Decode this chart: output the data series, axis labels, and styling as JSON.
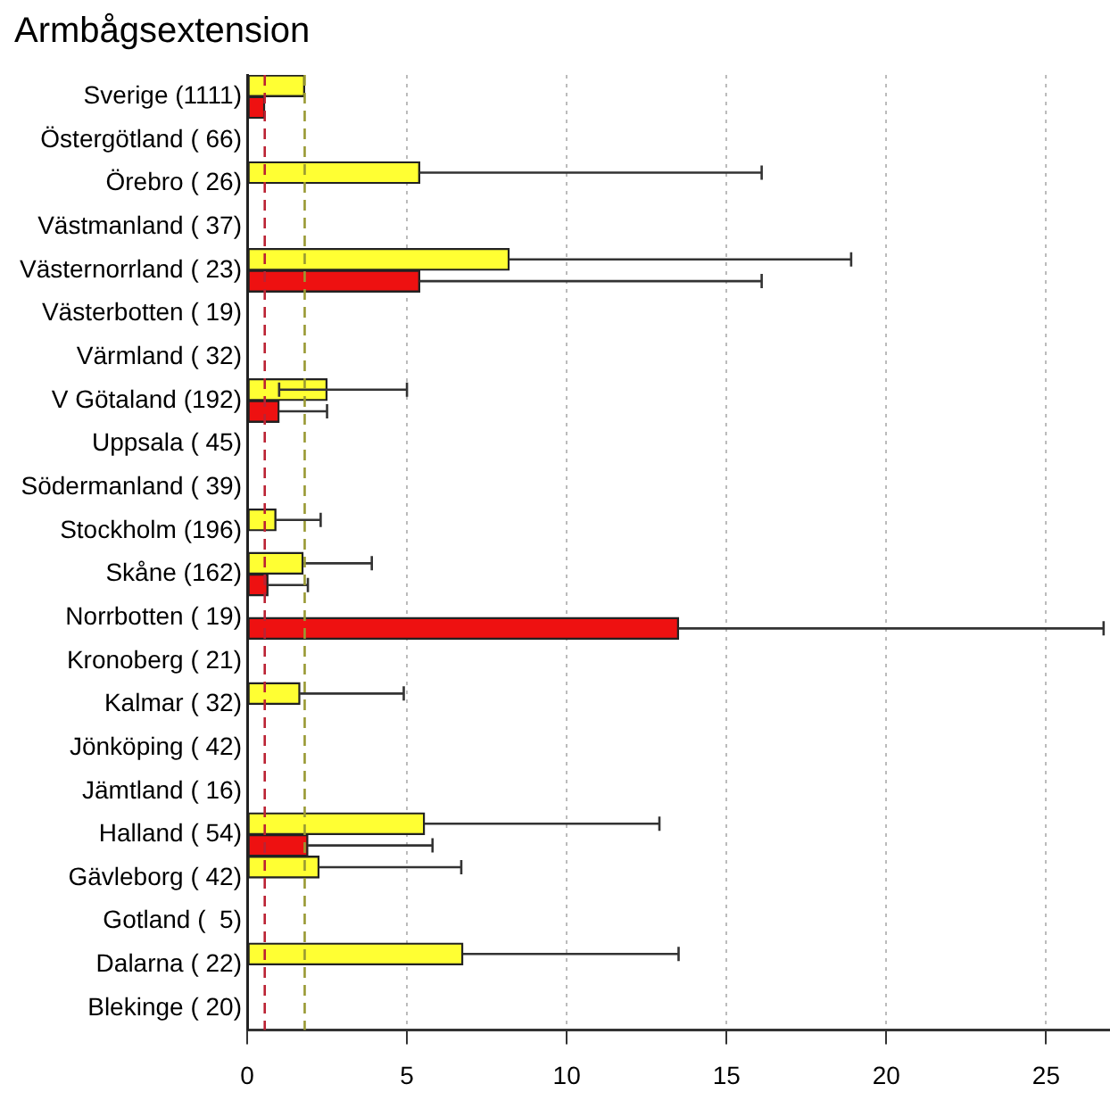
{
  "chart_data": {
    "type": "bar",
    "orientation": "horizontal",
    "title": "Armbågsextension",
    "categories": [
      "Sverige (1111)",
      "Östergötland ( 66)",
      "Örebro ( 26)",
      "Västmanland ( 37)",
      "Västernorrland ( 23)",
      "Västerbotten ( 19)",
      "Värmland ( 32)",
      "V Götaland (192)",
      "Uppsala ( 45)",
      "Södermanland ( 39)",
      "Stockholm (196)",
      "Skåne (162)",
      "Norrbotten ( 19)",
      "Kronoberg ( 21)",
      "Kalmar ( 32)",
      "Jönköping ( 42)",
      "Jämtland ( 16)",
      "Halland ( 54)",
      "Gävleborg ( 42)",
      "Gotland (  5)",
      "Dalarna ( 22)",
      "Blekinge ( 20)"
    ],
    "series": [
      {
        "color": "#ffff33",
        "values": [
          1.8,
          null,
          5.4,
          null,
          8.2,
          null,
          null,
          2.5,
          null,
          null,
          0.9,
          1.75,
          null,
          null,
          1.65,
          null,
          null,
          5.55,
          2.25,
          null,
          6.75,
          null
        ],
        "errors": [
          null,
          null,
          [
            5.4,
            16.1
          ],
          null,
          [
            8.2,
            18.9
          ],
          null,
          null,
          [
            1.0,
            5.0
          ],
          null,
          null,
          [
            0.9,
            2.3
          ],
          [
            1.75,
            3.9
          ],
          null,
          null,
          [
            1.65,
            4.9
          ],
          null,
          null,
          [
            5.55,
            12.9
          ],
          [
            2.25,
            6.7
          ],
          null,
          [
            6.75,
            13.5
          ],
          null
        ]
      },
      {
        "color": "#ee1111",
        "values": [
          0.55,
          null,
          null,
          null,
          5.4,
          null,
          null,
          1.0,
          null,
          null,
          null,
          0.65,
          13.5,
          null,
          null,
          null,
          null,
          1.9,
          null,
          null,
          null,
          null
        ],
        "errors": [
          null,
          null,
          null,
          null,
          [
            5.4,
            16.1
          ],
          null,
          null,
          [
            1.0,
            2.5
          ],
          null,
          null,
          null,
          [
            0.65,
            1.9
          ],
          [
            13.5,
            26.8
          ],
          null,
          null,
          null,
          null,
          [
            1.9,
            5.8
          ],
          null,
          null,
          null,
          null
        ]
      }
    ],
    "xlim": [
      0,
      27
    ],
    "xticks": [
      0,
      5,
      10,
      15,
      20,
      25
    ],
    "grid": "x",
    "legend": false,
    "ref_lines": [
      {
        "axis": "x",
        "value": 0.55,
        "color": "#bb2233",
        "line_style": "dashed"
      },
      {
        "axis": "x",
        "value": 1.8,
        "color": "#999933",
        "line_style": "dashed"
      }
    ]
  }
}
